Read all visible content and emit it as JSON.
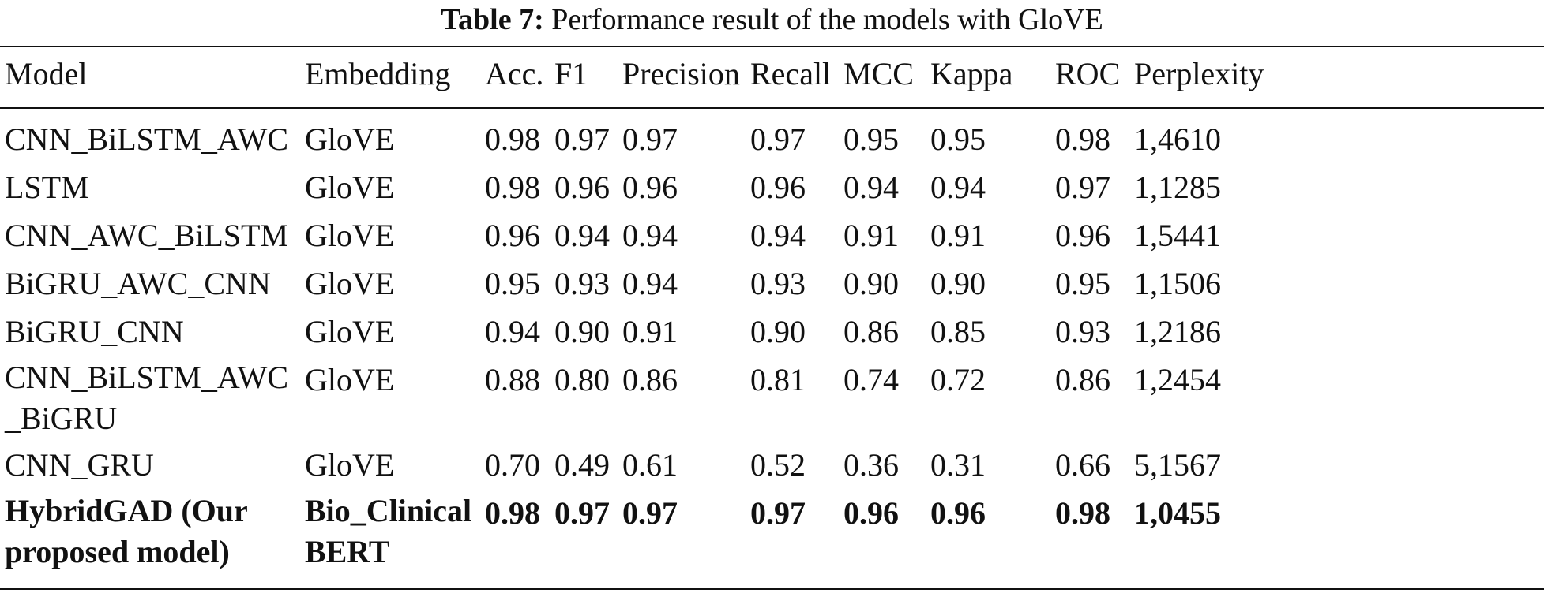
{
  "caption": {
    "label": "Table 7:",
    "text": "Performance result of the models with GloVE"
  },
  "table": {
    "headers": [
      "Model",
      "Embedding",
      "Acc.",
      "F1",
      "Precision",
      "Recall",
      "MCC",
      "Kappa",
      "ROC",
      "Perplexity"
    ],
    "rows": [
      [
        "CNN_BiLSTM_AWC",
        "GloVE",
        "0.98",
        "0.97",
        "0.97",
        "0.97",
        "0.95",
        "0.95",
        "0.98",
        "1,4610"
      ],
      [
        "LSTM",
        "GloVE",
        "0.98",
        "0.96",
        "0.96",
        "0.96",
        "0.94",
        "0.94",
        "0.97",
        "1,1285"
      ],
      [
        "CNN_AWC_BiLSTM",
        "GloVE",
        "0.96",
        "0.94",
        "0.94",
        "0.94",
        "0.91",
        "0.91",
        "0.96",
        "1,5441"
      ],
      [
        "BiGRU_AWC_CNN",
        "GloVE",
        "0.95",
        "0.93",
        "0.94",
        "0.93",
        "0.90",
        "0.90",
        "0.95",
        "1,1506"
      ],
      [
        "BiGRU_CNN",
        "GloVE",
        "0.94",
        "0.90",
        "0.91",
        "0.90",
        "0.86",
        "0.85",
        "0.93",
        "1,2186"
      ],
      [
        "CNN_BiLSTM_AWC _BiGRU",
        "GloVE",
        "0.88",
        "0.80",
        "0.86",
        "0.81",
        "0.74",
        "0.72",
        "0.86",
        "1,2454"
      ],
      [
        "CNN_GRU",
        "GloVE",
        "0.70",
        "0.49",
        "0.61",
        "0.52",
        "0.36",
        "0.31",
        "0.66",
        "5,1567"
      ],
      [
        "HybridGAD (Our proposed model)",
        "Bio_Clinical BERT",
        "0.98",
        "0.97",
        "0.97",
        "0.97",
        "0.96",
        "0.96",
        "0.98",
        "1,0455"
      ]
    ]
  }
}
